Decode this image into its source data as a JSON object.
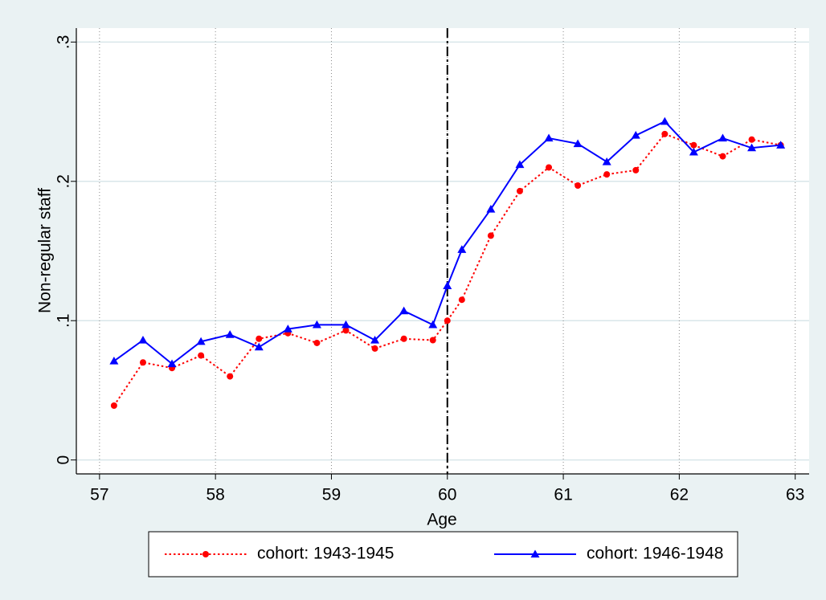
{
  "chart_data": {
    "type": "line",
    "x_label": "Age",
    "y_label": "Non-regular staff",
    "x": [
      57.125,
      57.375,
      57.625,
      57.875,
      58.125,
      58.375,
      58.625,
      58.875,
      59.125,
      59.375,
      59.625,
      59.875,
      60,
      60.125,
      60.375,
      60.625,
      60.875,
      61.125,
      61.375,
      61.625,
      61.875,
      62.125,
      62.375,
      62.625,
      62.875
    ],
    "series": [
      {
        "name": "cohort: 1943-1945",
        "color": "#ff0000",
        "line_style": "dotted",
        "marker": "circle",
        "values": [
          0.039,
          0.07,
          0.066,
          0.075,
          0.06,
          0.087,
          0.091,
          0.084,
          0.093,
          0.08,
          0.087,
          0.086,
          0.1,
          0.115,
          0.161,
          0.193,
          0.21,
          0.197,
          0.205,
          0.208,
          0.234,
          0.226,
          0.218,
          0.23,
          0.226
        ]
      },
      {
        "name": "cohort: 1946-1948",
        "color": "#0000ff",
        "line_style": "solid",
        "marker": "triangle",
        "values": [
          0.071,
          0.086,
          0.069,
          0.085,
          0.09,
          0.081,
          0.094,
          0.097,
          0.097,
          0.086,
          0.107,
          0.097,
          0.125,
          0.151,
          0.18,
          0.212,
          0.231,
          0.227,
          0.214,
          0.233,
          0.243,
          0.221,
          0.231,
          0.224,
          0.226
        ]
      }
    ],
    "xlim": [
      56.8,
      63.12
    ],
    "xticks": [
      57,
      58,
      59,
      60,
      61,
      62,
      63
    ],
    "ylim": [
      -0.01,
      0.31
    ],
    "yticks": [
      0,
      {
        "value": 0.1,
        "label": ".1"
      },
      {
        "value": 0.2,
        "label": ".2"
      },
      {
        "value": 0.3,
        "label": ".3"
      }
    ],
    "reference_line_x": 60,
    "grid": true,
    "legend_position": "bottom"
  }
}
